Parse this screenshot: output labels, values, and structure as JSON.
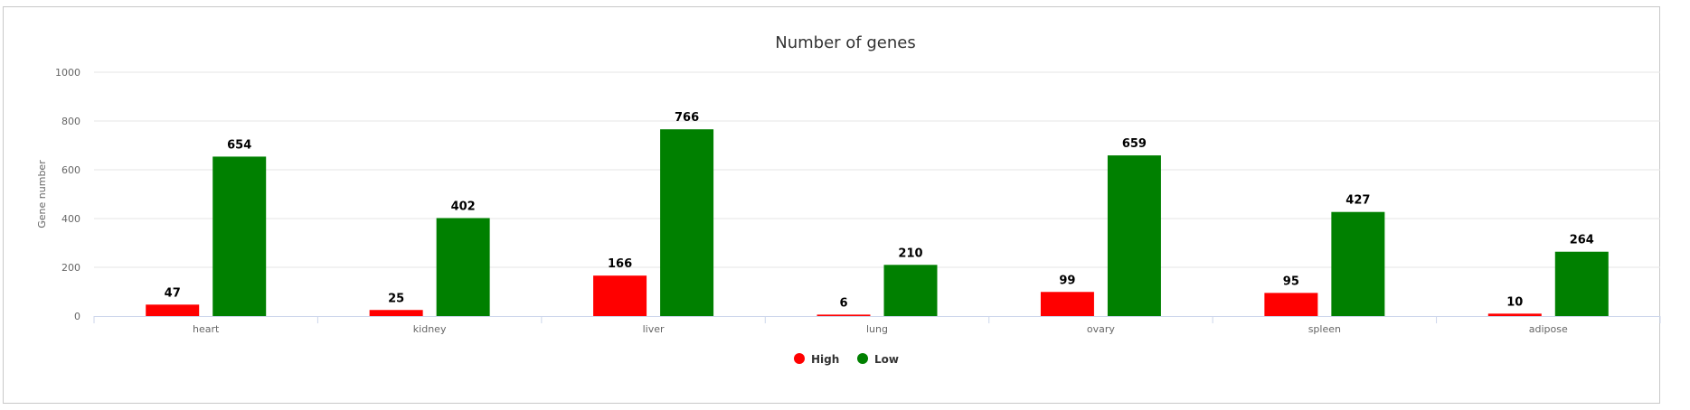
{
  "chart_data": {
    "type": "bar",
    "title": "Number of genes",
    "xlabel": "",
    "ylabel": "Gene number",
    "categories": [
      "heart",
      "kidney",
      "liver",
      "lung",
      "ovary",
      "spleen",
      "adipose"
    ],
    "series": [
      {
        "name": "High",
        "color": "#ff0000",
        "values": [
          47,
          25,
          166,
          6,
          99,
          95,
          10
        ]
      },
      {
        "name": "Low",
        "color": "#008000",
        "values": [
          654,
          402,
          766,
          210,
          659,
          427,
          264
        ]
      }
    ],
    "ylim": [
      0,
      1000
    ],
    "yticks": [
      0,
      200,
      400,
      600,
      800,
      1000
    ],
    "grid": true,
    "legend": "bottom-center",
    "data_labels": true
  }
}
